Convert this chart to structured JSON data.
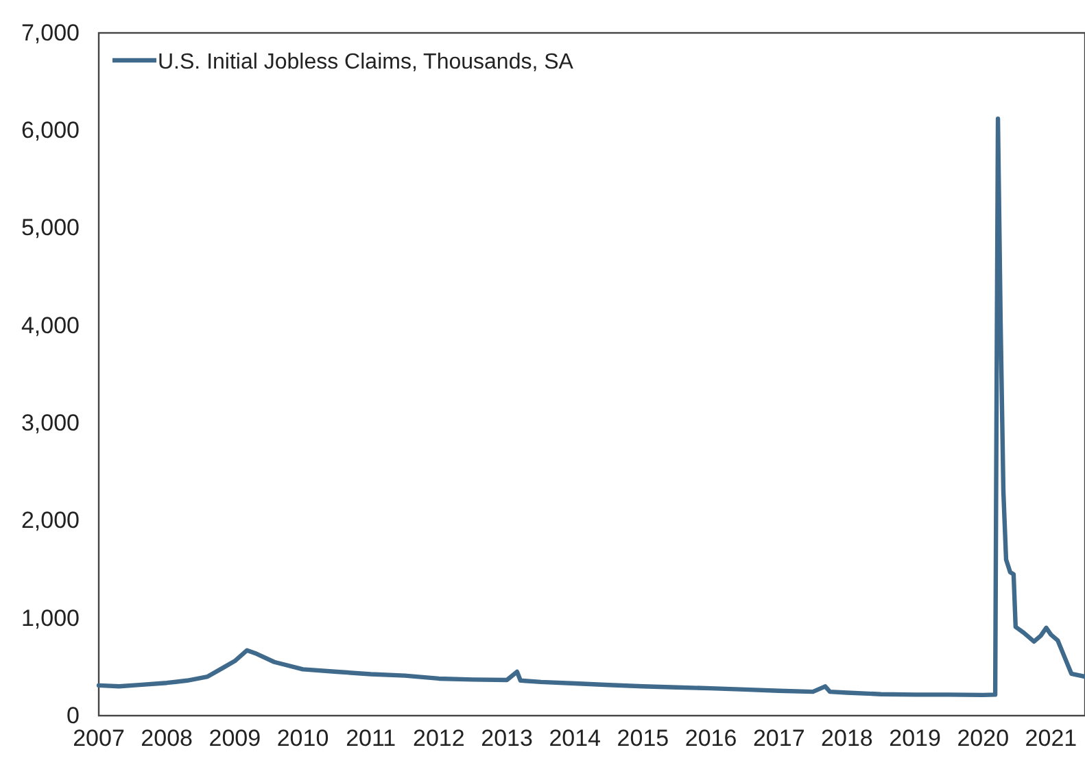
{
  "chart_data": {
    "type": "line",
    "legend": "top left",
    "grid": false,
    "xlim": [
      2007,
      2021.5
    ],
    "xticks": [
      2007,
      2008,
      2009,
      2010,
      2011,
      2012,
      2013,
      2014,
      2015,
      2016,
      2017,
      2018,
      2019,
      2020,
      2021
    ],
    "ylim": [
      0,
      7000
    ],
    "yticks": [
      0,
      {
        "value": 1000,
        "label": "1,000"
      },
      {
        "value": 2000,
        "label": "2,000"
      },
      {
        "value": 3000,
        "label": "3,000"
      },
      {
        "value": 4000,
        "label": "4,000"
      },
      {
        "value": 5000,
        "label": "5,000"
      },
      {
        "value": 6000,
        "label": "6,000"
      },
      {
        "value": 7000,
        "label": "7,000"
      }
    ],
    "x": [
      2007.0,
      2007.3,
      2007.6,
      2008.0,
      2008.3,
      2008.6,
      2008.85,
      2009.0,
      2009.18,
      2009.3,
      2009.58,
      2010.0,
      2010.5,
      2011.0,
      2011.5,
      2012.0,
      2012.5,
      2013.0,
      2013.15,
      2013.2,
      2013.5,
      2014.0,
      2014.5,
      2015.0,
      2015.5,
      2016.0,
      2016.5,
      2017.0,
      2017.5,
      2017.68,
      2017.75,
      2018.0,
      2018.5,
      2019.0,
      2019.5,
      2020.0,
      2020.18,
      2020.2,
      2020.22,
      2020.26,
      2020.3,
      2020.34,
      2020.4,
      2020.45,
      2020.48,
      2020.6,
      2020.75,
      2020.85,
      2020.93,
      2021.0,
      2021.1,
      2021.2,
      2021.3,
      2021.5
    ],
    "series": [
      {
        "name": "U.S. Initial Jobless Claims, Thousands, SA",
        "color": "#3f6a8c",
        "values": [
          310,
          300,
          315,
          336,
          360,
          400,
          500,
          560,
          670,
          640,
          550,
          475,
          450,
          425,
          410,
          380,
          370,
          365,
          450,
          360,
          345,
          330,
          315,
          300,
          290,
          280,
          268,
          255,
          245,
          300,
          245,
          235,
          220,
          215,
          215,
          212,
          215,
          3300,
          6120,
          4000,
          2300,
          1600,
          1470,
          1450,
          910,
          850,
          760,
          820,
          900,
          830,
          770,
          600,
          430,
          400
        ]
      }
    ]
  }
}
